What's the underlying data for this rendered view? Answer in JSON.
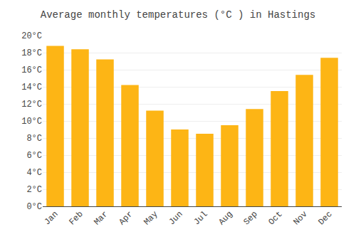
{
  "chart_data": {
    "type": "bar",
    "title": "Average monthly temperatures (°C ) in Hastings",
    "categories": [
      "Jan",
      "Feb",
      "Mar",
      "Apr",
      "May",
      "Jun",
      "Jul",
      "Aug",
      "Sep",
      "Oct",
      "Nov",
      "Dec"
    ],
    "values": [
      18.8,
      18.4,
      17.2,
      14.2,
      11.2,
      9.0,
      8.5,
      9.5,
      11.4,
      13.5,
      15.4,
      17.4
    ],
    "color": "#FDB515",
    "ylim": [
      0,
      20
    ],
    "yticks": [
      {
        "value": 0,
        "label": "0°C"
      },
      {
        "value": 2,
        "label": "2°C"
      },
      {
        "value": 4,
        "label": "4°C"
      },
      {
        "value": 6,
        "label": "6°C"
      },
      {
        "value": 8,
        "label": "8°C"
      },
      {
        "value": 10,
        "label": "10°C"
      },
      {
        "value": 12,
        "label": "12°C"
      },
      {
        "value": 14,
        "label": "14°C"
      },
      {
        "value": 16,
        "label": "16°C"
      },
      {
        "value": 18,
        "label": "18°C"
      },
      {
        "value": 20,
        "label": "20°C"
      }
    ],
    "grid": true
  }
}
